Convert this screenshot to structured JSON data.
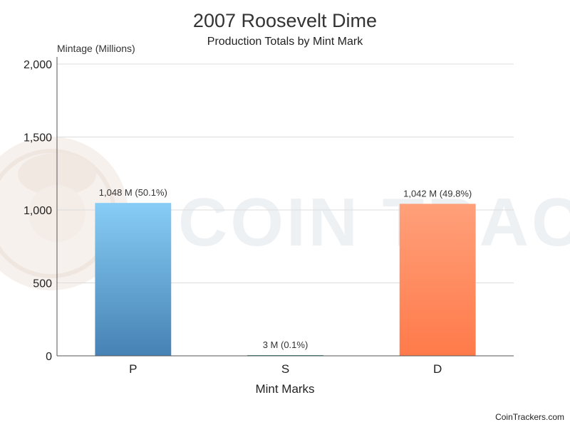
{
  "chart_data": {
    "type": "bar",
    "title": "2007 Roosevelt Dime",
    "subtitle": "Production Totals by Mint Mark",
    "xlabel": "Mint Marks",
    "ylabel": "Mintage (Millions)",
    "ylim": [
      0,
      2000
    ],
    "yticks": [
      0,
      500,
      1000,
      1500,
      2000
    ],
    "ytick_labels": [
      "0",
      "500",
      "1,000",
      "1,500",
      "2,000"
    ],
    "categories": [
      "P",
      "S",
      "D"
    ],
    "values": [
      1048,
      3,
      1042
    ],
    "data_labels": [
      "1,048 M (50.1%)",
      "3 M (0.1%)",
      "1,042 M (49.8%)"
    ],
    "grid": true,
    "legend": "none"
  },
  "watermark": {
    "text": "COIN TRACKERS",
    "icon": "coin-mascot-icon"
  },
  "credit": "CoinTrackers.com",
  "colors": {
    "P_top": "#87cdf6",
    "P_bottom": "#4682b4",
    "S_top": "#3aa5a0",
    "S_bottom": "#2b7f7a",
    "D_top": "#ffa07a",
    "D_bottom": "#ff7a4a",
    "grid": "#dddddd",
    "axis": "#555555"
  }
}
